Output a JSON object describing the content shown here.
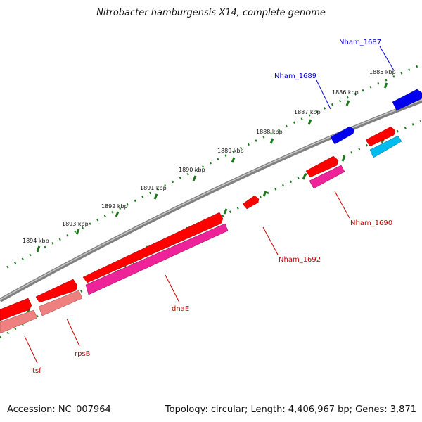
{
  "title": "Nitrobacter hamburgensis X14, complete genome",
  "footer": {
    "accession": "Accession: NC_007964",
    "summary": "Topology: circular; Length: 4,406,967 bp; Genes: 3,871"
  },
  "kbp_ticks": [
    {
      "label": "1885 kbp"
    },
    {
      "label": "1886 kbp"
    },
    {
      "label": "1887 kbp"
    },
    {
      "label": "1888 kbp"
    },
    {
      "label": "1889 kbp"
    },
    {
      "label": "1890 kbp"
    },
    {
      "label": "1891 kbp"
    },
    {
      "label": "1892 kbp"
    },
    {
      "label": "1893 kbp"
    },
    {
      "label": "1894 kbp"
    }
  ],
  "gene_labels": [
    {
      "label": "Nham_1687",
      "color": "#0000cc"
    },
    {
      "label": "Nham_1689",
      "color": "#0000cc"
    },
    {
      "label": "Nham_1690",
      "color": "#cc0000"
    },
    {
      "label": "Nham_1692",
      "color": "#cc0000"
    },
    {
      "label": "dnaE",
      "color": "#cc0000"
    },
    {
      "label": "rpsB",
      "color": "#cc0000"
    },
    {
      "label": "tsf",
      "color": "#cc0000"
    }
  ],
  "colors": {
    "backbone": "#808080",
    "tick": "#1a7a1a",
    "gene_red": "#ff0000",
    "gene_blue": "#0000ee",
    "cds_pink": "#ee2299",
    "cds_cyan": "#00bbee",
    "cds_salmon": "#ee8080"
  }
}
